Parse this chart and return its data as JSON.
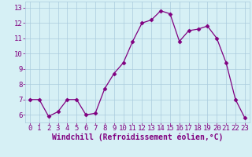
{
  "x": [
    0,
    1,
    2,
    3,
    4,
    5,
    6,
    7,
    8,
    9,
    10,
    11,
    12,
    13,
    14,
    15,
    16,
    17,
    18,
    19,
    20,
    21,
    22,
    23
  ],
  "y": [
    7.0,
    7.0,
    5.9,
    6.2,
    7.0,
    7.0,
    6.0,
    6.1,
    7.7,
    8.7,
    9.4,
    10.8,
    12.0,
    12.2,
    12.8,
    12.6,
    10.8,
    11.5,
    11.6,
    11.8,
    11.0,
    9.4,
    7.0,
    5.8
  ],
  "line_color": "#800080",
  "marker": "D",
  "marker_size": 2.5,
  "bg_color": "#d6f0f5",
  "grid_color": "#aaccdd",
  "xlabel": "Windchill (Refroidissement éolien,°C)",
  "xlabel_color": "#800080",
  "xlabel_fontsize": 7,
  "tick_color": "#800080",
  "tick_fontsize": 6.5,
  "ylim": [
    5.5,
    13.4
  ],
  "xlim": [
    -0.5,
    23.5
  ],
  "yticks": [
    6,
    7,
    8,
    9,
    10,
    11,
    12,
    13
  ],
  "xticks": [
    0,
    1,
    2,
    3,
    4,
    5,
    6,
    7,
    8,
    9,
    10,
    11,
    12,
    13,
    14,
    15,
    16,
    17,
    18,
    19,
    20,
    21,
    22,
    23
  ]
}
